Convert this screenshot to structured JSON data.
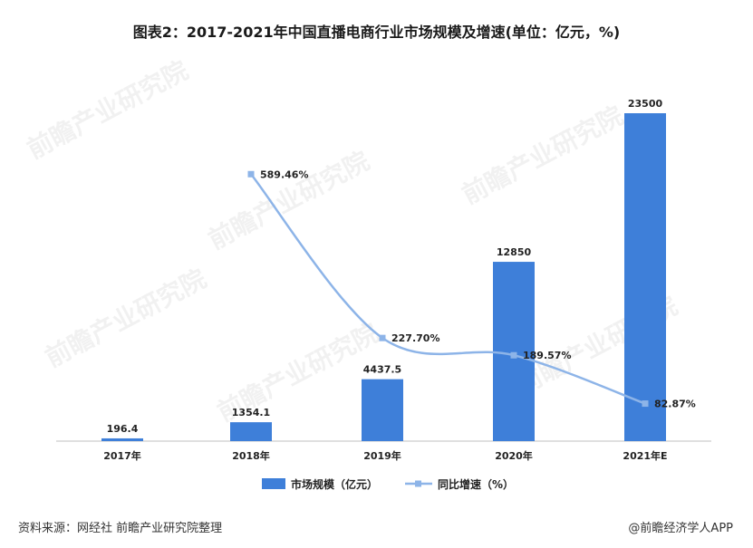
{
  "title": "图表2：2017-2021年中国直播电商行业市场规模及增速(单位：亿元，%)",
  "chart_data": {
    "type": "bar",
    "categories": [
      "2017年",
      "2018年",
      "2019年",
      "2020年",
      "2021年E"
    ],
    "series": [
      {
        "name": "市场规模（亿元）",
        "type": "bar",
        "values": [
          196.4,
          1354.1,
          4437.5,
          12850,
          23500
        ],
        "labels": [
          "196.4",
          "1354.1",
          "4437.5",
          "12850",
          "23500"
        ],
        "color": "#3E7FD9"
      },
      {
        "name": "同比增速（%）",
        "type": "line",
        "values": [
          null,
          589.46,
          227.7,
          189.57,
          82.87
        ],
        "labels": [
          "",
          "589.46%",
          "227.70%",
          "189.57%",
          "82.87%"
        ],
        "color": "#8DB4E8"
      }
    ],
    "ylim_bar": [
      0,
      23500
    ],
    "ylim_line": [
      0,
      650
    ],
    "grid": false,
    "legend_position": "bottom"
  },
  "legend": {
    "bar_label": "市场规模（亿元）",
    "line_label": "同比增速（%）"
  },
  "source": "资料来源：网经社 前瞻产业研究院整理",
  "credit": "@前瞻经济学人APP",
  "watermark_text": "前瞻产业研究院"
}
